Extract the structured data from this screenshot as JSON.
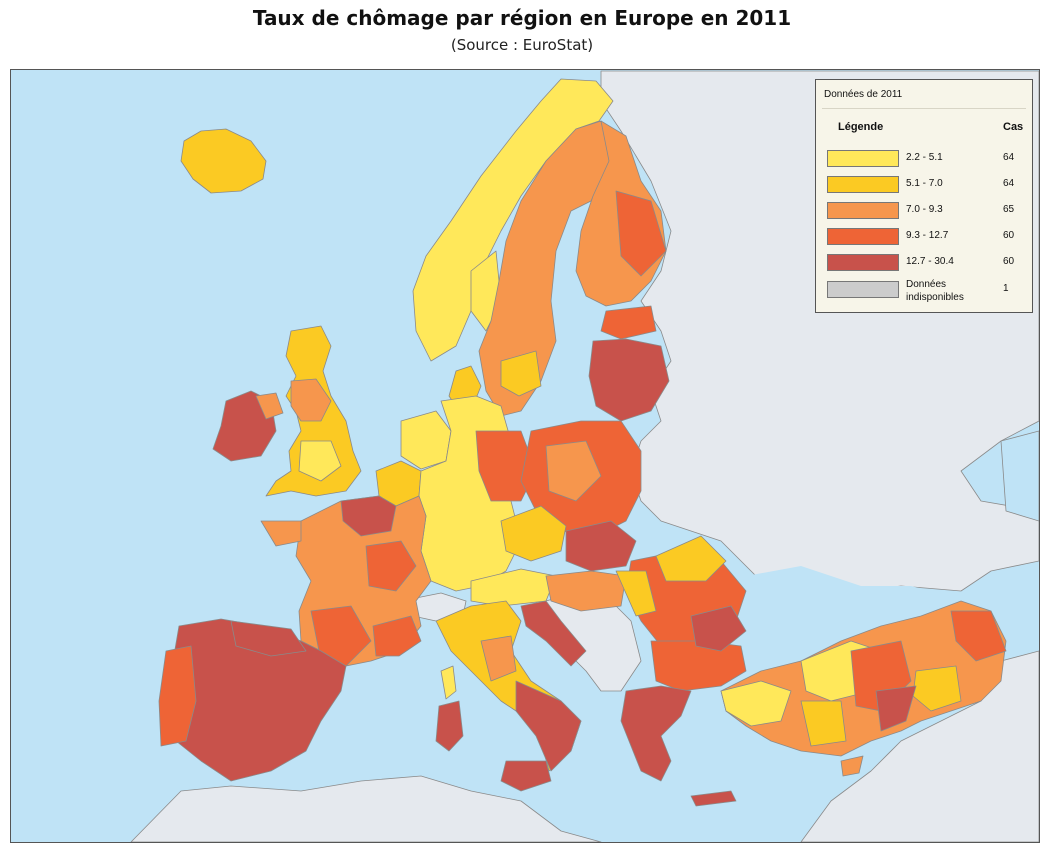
{
  "title": "Taux de chômage par région en Europe en 2011",
  "subtitle": "(Source : EuroStat)",
  "colors": {
    "sea": "#bfe3f6",
    "land_other": "#e5e9ee",
    "border": "#8a8a8a",
    "class_1": "#ffe85a",
    "class_2": "#fbca23",
    "class_3": "#f6964d",
    "class_4": "#ee6436",
    "class_5": "#c8524b",
    "no_data": "#cccccc"
  },
  "legend": {
    "heading": "Données de 2011",
    "col_legend": "Légende",
    "col_count": "Cas",
    "items": [
      {
        "range": "2.2 - 5.1",
        "count": "64",
        "color": "#ffe85a"
      },
      {
        "range": "5.1 - 7.0",
        "count": "64",
        "color": "#fbca23"
      },
      {
        "range": "7.0 - 9.3",
        "count": "65",
        "color": "#f6964d"
      },
      {
        "range": "9.3 - 12.7",
        "count": "60",
        "color": "#ee6436"
      },
      {
        "range": "12.7 - 30.4",
        "count": "60",
        "color": "#c8524b"
      },
      {
        "range": "Données indisponibles",
        "count": "1",
        "color": "#cccccc"
      }
    ]
  }
}
